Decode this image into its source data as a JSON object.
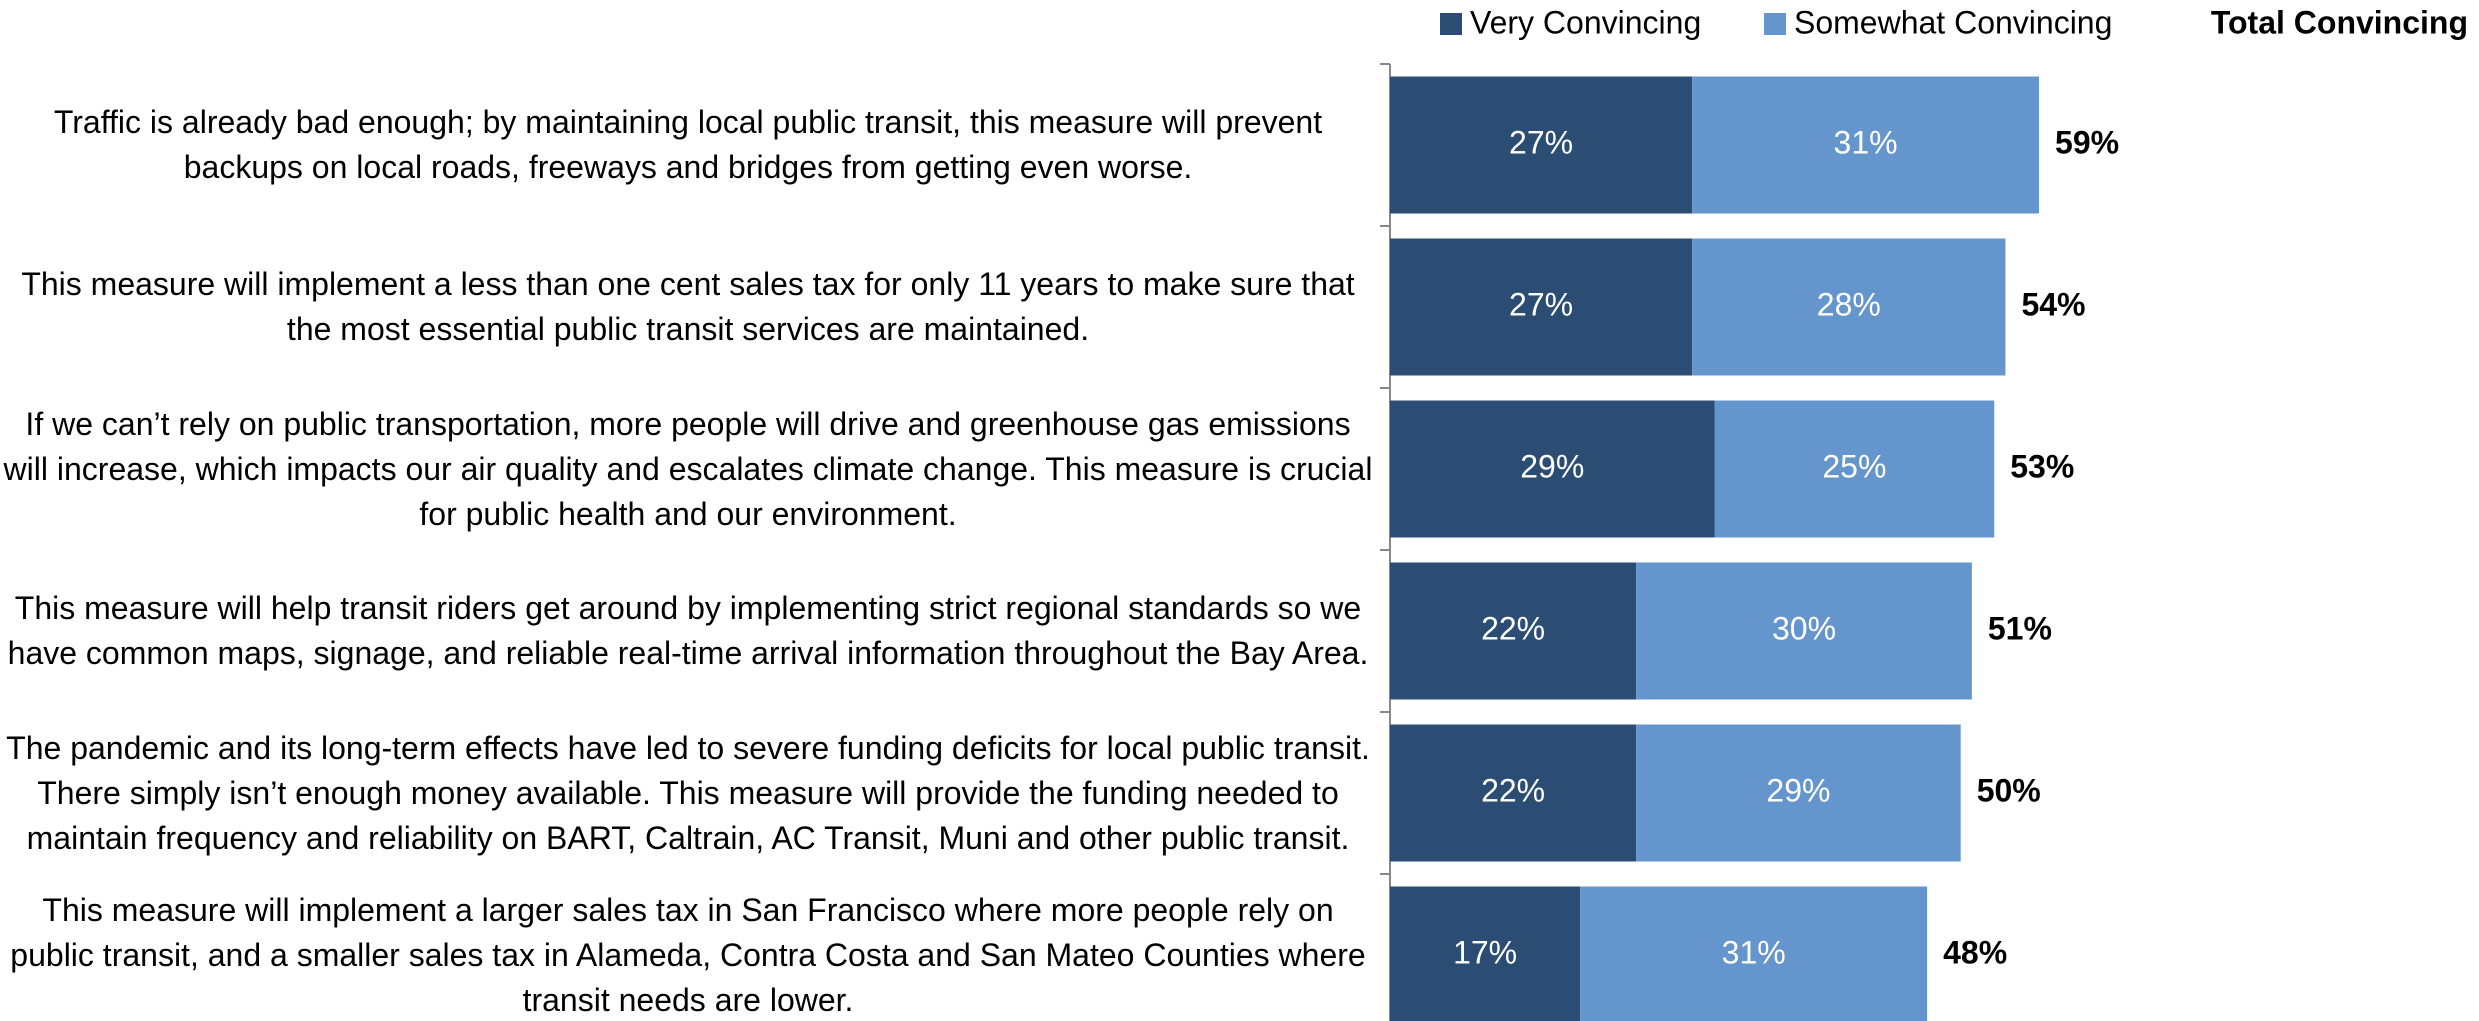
{
  "chart_data": {
    "type": "stacked-bar-horizontal",
    "categories": [
      "Traffic is already bad enough; by maintaining local public transit, this measure will prevent backups on local roads, freeways and bridges from getting even worse.",
      "This measure will implement a less than one cent sales tax for only 11 years to make sure that the most essential public transit services are maintained.",
      "If we can’t rely on public transportation, more people will drive and greenhouse gas emissions will increase, which impacts our air quality and escalates climate change. This measure is crucial for public health and our environment.",
      "This measure will help transit riders get around by implementing strict regional standards so we have common maps, signage, and reliable real-time arrival information throughout the Bay Area.",
      "The pandemic and its long-term effects have led to severe funding deficits for local public transit.  There simply isn’t enough money available. This measure will provide the funding needed to maintain frequency and reliability on BART, Caltrain, AC Transit, Muni and other public transit.",
      "This measure will implement a larger sales tax in San Francisco where more people rely on public transit, and a smaller sales tax in Alameda, Contra Costa and San Mateo Counties where transit needs are lower."
    ],
    "series": [
      {
        "name": "Very Convincing",
        "color": "#2b4d74",
        "values": [
          27,
          27,
          29,
          22,
          22,
          17
        ],
        "value_labels": [
          "27%",
          "27%",
          "29%",
          "22%",
          "22%",
          "17%"
        ]
      },
      {
        "name": "Somewhat Convincing",
        "color": "#6595cd",
        "values": [
          31,
          28,
          25,
          30,
          29,
          31
        ],
        "value_labels": [
          "31%",
          "28%",
          "25%",
          "30%",
          "29%",
          "31%"
        ]
      }
    ],
    "totals_name": "Total Convincing",
    "totals": [
      59,
      54,
      53,
      51,
      50,
      48
    ],
    "totals_labels": [
      "59%",
      "54%",
      "53%",
      "51%",
      "50%",
      "48%"
    ],
    "xlim": [
      0,
      100
    ]
  }
}
